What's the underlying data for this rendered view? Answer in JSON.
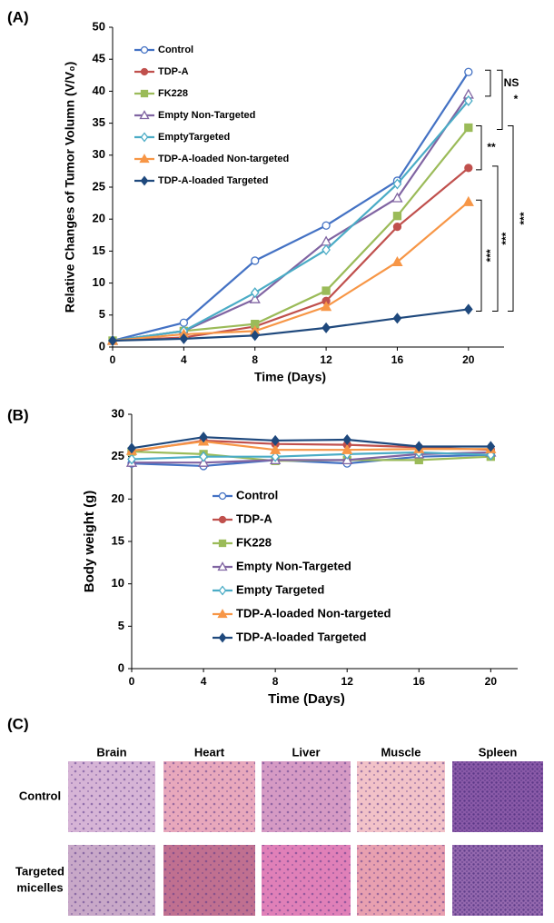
{
  "chart_data": [
    {
      "type": "line",
      "panel_label": "(A)",
      "x_label": "Time (Days)",
      "y_label": "Relative Changes of Tumor Volumn (V/V₀)",
      "x": [
        0,
        4,
        8,
        12,
        16,
        20
      ],
      "xlim": [
        0,
        22
      ],
      "xticks": [
        0,
        4,
        8,
        12,
        16,
        20
      ],
      "ylim": [
        0,
        50
      ],
      "yticks": [
        0,
        5,
        10,
        15,
        20,
        25,
        30,
        35,
        40,
        45,
        50
      ],
      "legend": "upper left",
      "series": [
        {
          "name": "Control",
          "color": "#4472c4",
          "marker": "circle-open",
          "values": [
            1,
            3.8,
            13.5,
            19,
            26,
            43
          ]
        },
        {
          "name": "TDP-A",
          "color": "#c0504d",
          "marker": "circle",
          "values": [
            1,
            1.5,
            3.2,
            7.2,
            18.8,
            28
          ]
        },
        {
          "name": "FK228",
          "color": "#9bbb59",
          "marker": "square",
          "values": [
            1,
            2.5,
            3.6,
            8.8,
            20.5,
            34.3
          ]
        },
        {
          "name": "Empty Non-Targeted",
          "color": "#8064a2",
          "marker": "triangle-open",
          "values": [
            1,
            2.5,
            7.5,
            16.5,
            23.3,
            39.5
          ]
        },
        {
          "name": "EmptyTargeted",
          "color": "#4bacc6",
          "marker": "diamond-open",
          "values": [
            1,
            2.5,
            8.5,
            15.2,
            25.5,
            38.5
          ]
        },
        {
          "name": "TDP-A-loaded Non-targeted",
          "color": "#f79646",
          "marker": "triangle",
          "values": [
            1,
            2,
            2.5,
            6.3,
            13.3,
            22.7
          ]
        },
        {
          "name": "TDP-A-loaded Targeted",
          "color": "#1f497d",
          "marker": "diamond",
          "values": [
            1,
            1.3,
            1.8,
            3,
            4.5,
            5.9
          ]
        }
      ],
      "annotations": [
        "NS",
        "*",
        "**",
        "***",
        "***",
        "***"
      ]
    },
    {
      "type": "line",
      "panel_label": "(B)",
      "x_label": "Time (Days)",
      "y_label": "Body weight (g)",
      "x": [
        0,
        4,
        8,
        12,
        16,
        20
      ],
      "xlim": [
        0,
        21.5
      ],
      "xticks": [
        0,
        4,
        8,
        12,
        16,
        20
      ],
      "ylim": [
        0,
        30
      ],
      "yticks": [
        0,
        5,
        10,
        15,
        20,
        25,
        30
      ],
      "legend": "center",
      "series": [
        {
          "name": "Control",
          "color": "#4472c4",
          "marker": "circle-open",
          "values": [
            24.2,
            23.9,
            24.6,
            24.2,
            25,
            25.2
          ]
        },
        {
          "name": "TDP-A",
          "color": "#c0504d",
          "marker": "circle",
          "values": [
            25.6,
            26.9,
            26.5,
            26.4,
            26.1,
            25.8
          ]
        },
        {
          "name": "FK228",
          "color": "#9bbb59",
          "marker": "square",
          "values": [
            25.6,
            25.3,
            24.5,
            24.6,
            24.6,
            25
          ]
        },
        {
          "name": "Empty Non-Targeted",
          "color": "#8064a2",
          "marker": "triangle-open",
          "values": [
            24.3,
            24.3,
            24.6,
            24.6,
            25.3,
            25.5
          ]
        },
        {
          "name": "Empty Targeted",
          "color": "#4bacc6",
          "marker": "diamond-open",
          "values": [
            24.7,
            25,
            25,
            25.3,
            25.5,
            25.2
          ]
        },
        {
          "name": "TDP-A-loaded Non-targeted",
          "color": "#f79646",
          "marker": "triangle",
          "values": [
            25.7,
            26.8,
            25.8,
            25.8,
            25.9,
            25.9
          ]
        },
        {
          "name": "TDP-A-loaded Targeted",
          "color": "#1f497d",
          "marker": "diamond",
          "values": [
            26,
            27.3,
            26.9,
            27,
            26.2,
            26.2
          ]
        }
      ]
    }
  ],
  "panel_c": {
    "label": "(C)",
    "columns": [
      "Brain",
      "Heart",
      "Liver",
      "Muscle",
      "Spleen"
    ],
    "rows": [
      [
        "Control"
      ],
      [
        "Targeted",
        "micelles"
      ]
    ]
  }
}
